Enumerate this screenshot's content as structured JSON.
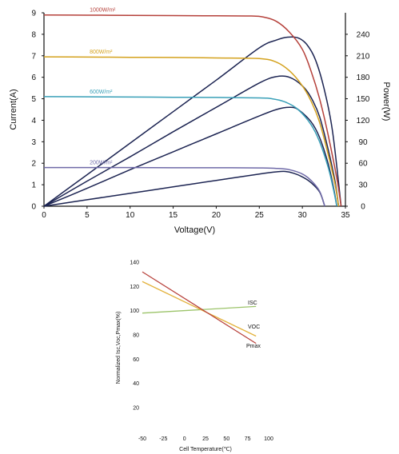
{
  "chart_data": [
    {
      "type": "line",
      "title": "",
      "xlabel": "Voltage(V)",
      "ylabel": "Current(A)",
      "ylabel_right": "Power(W)",
      "xlim": [
        0,
        35
      ],
      "ylim": [
        0,
        9
      ],
      "ylim_right": [
        0,
        270
      ],
      "xticks": [
        0,
        5,
        10,
        15,
        20,
        25,
        30,
        35
      ],
      "yticks": [
        0,
        1,
        2,
        3,
        4,
        5,
        6,
        7,
        8,
        9
      ],
      "yticks_right": [
        0,
        30,
        60,
        90,
        120,
        150,
        180,
        210,
        240
      ],
      "grid": false,
      "series": [
        {
          "name": "1000W/m²",
          "color": "#b5403a",
          "iv": [
            [
              0,
              8.9
            ],
            [
              5,
              8.89
            ],
            [
              10,
              8.88
            ],
            [
              15,
              8.87
            ],
            [
              20,
              8.86
            ],
            [
              24,
              8.85
            ],
            [
              25.5,
              8.8
            ],
            [
              27,
              8.6
            ],
            [
              28.5,
              8.1
            ],
            [
              30,
              7.3
            ],
            [
              31,
              6.3
            ],
            [
              32,
              5.0
            ],
            [
              33,
              3.3
            ],
            [
              34,
              1.3
            ],
            [
              34.5,
              0
            ]
          ],
          "pv": [
            [
              0,
              0
            ],
            [
              5,
              44
            ],
            [
              10,
              88
            ],
            [
              15,
              132
            ],
            [
              20,
              176
            ],
            [
              25,
              221
            ],
            [
              27,
              232
            ],
            [
              28.3,
              236
            ],
            [
              29.5,
              235
            ],
            [
              30.5,
              226
            ],
            [
              31.5,
              205
            ],
            [
              32.5,
              165
            ],
            [
              33.5,
              105
            ],
            [
              34.5,
              0
            ]
          ]
        },
        {
          "name": "800W/m²",
          "color": "#d4a21e",
          "iv": [
            [
              0,
              6.95
            ],
            [
              5,
              6.94
            ],
            [
              10,
              6.93
            ],
            [
              15,
              6.92
            ],
            [
              20,
              6.9
            ],
            [
              25,
              6.87
            ],
            [
              27,
              6.7
            ],
            [
              28.5,
              6.3
            ],
            [
              30,
              5.6
            ],
            [
              31,
              4.9
            ],
            [
              32,
              3.9
            ],
            [
              33,
              2.4
            ],
            [
              33.8,
              1.0
            ],
            [
              34.2,
              0
            ]
          ],
          "pv": [
            [
              0,
              0
            ],
            [
              5,
              35
            ],
            [
              10,
              69
            ],
            [
              15,
              104
            ],
            [
              20,
              138
            ],
            [
              25,
              172
            ],
            [
              27,
              181
            ],
            [
              28.5,
              180
            ],
            [
              30,
              168
            ],
            [
              31,
              152
            ],
            [
              32,
              125
            ],
            [
              33,
              79
            ],
            [
              33.8,
              34
            ],
            [
              34.2,
              0
            ]
          ]
        },
        {
          "name": "600W/m²",
          "color": "#3aa0b8",
          "iv": [
            [
              0,
              5.1
            ],
            [
              5,
              5.09
            ],
            [
              10,
              5.08
            ],
            [
              15,
              5.07
            ],
            [
              20,
              5.06
            ],
            [
              25,
              5.04
            ],
            [
              26.5,
              5.0
            ],
            [
              28,
              4.85
            ],
            [
              29.5,
              4.5
            ],
            [
              31,
              3.8
            ],
            [
              32,
              3.0
            ],
            [
              33,
              1.8
            ],
            [
              33.6,
              0.8
            ],
            [
              34,
              0
            ]
          ],
          "pv": [
            [
              0,
              0
            ],
            [
              5,
              25
            ],
            [
              10,
              51
            ],
            [
              15,
              76
            ],
            [
              20,
              101
            ],
            [
              25,
              126
            ],
            [
              27,
              135
            ],
            [
              28.5,
              138
            ],
            [
              29.5,
              135
            ],
            [
              31,
              118
            ],
            [
              32,
              96
            ],
            [
              33,
              59
            ],
            [
              33.6,
              27
            ],
            [
              34,
              0
            ]
          ]
        },
        {
          "name": "200W/m²",
          "color": "#6f6aa8",
          "iv": [
            [
              0,
              1.8
            ],
            [
              5,
              1.8
            ],
            [
              10,
              1.8
            ],
            [
              15,
              1.79
            ],
            [
              20,
              1.79
            ],
            [
              25,
              1.78
            ],
            [
              27,
              1.76
            ],
            [
              28.5,
              1.7
            ],
            [
              30,
              1.5
            ],
            [
              31,
              1.2
            ],
            [
              32,
              0.7
            ],
            [
              32.6,
              0
            ]
          ],
          "pv": [
            [
              0,
              0
            ],
            [
              5,
              9
            ],
            [
              10,
              18
            ],
            [
              15,
              27
            ],
            [
              20,
              36
            ],
            [
              25,
              45
            ],
            [
              27,
              48
            ],
            [
              28,
              48.5
            ],
            [
              29,
              46
            ],
            [
              30,
              41
            ],
            [
              31,
              33
            ],
            [
              32,
              20
            ],
            [
              32.6,
              0
            ]
          ]
        }
      ],
      "power_series_color": "#1c2452"
    },
    {
      "type": "line",
      "title": "",
      "xlabel": "Cell Temperature(℃)",
      "ylabel": "Normalized Isc,Voc,Pmax(%)",
      "xlim": [
        -50,
        100
      ],
      "ylim": [
        20,
        140
      ],
      "xticks": [
        -50,
        -25,
        0,
        25,
        50,
        75,
        100
      ],
      "yticks": [
        20,
        40,
        60,
        80,
        100,
        120,
        140
      ],
      "grid": false,
      "series": [
        {
          "name": "ISC",
          "color": "#9cc46a",
          "points": [
            [
              -50,
              98
            ],
            [
              85,
              103.5
            ]
          ]
        },
        {
          "name": "VOC",
          "color": "#e3b23c",
          "points": [
            [
              -50,
              124
            ],
            [
              85,
              79
            ]
          ]
        },
        {
          "name": "Pmax",
          "color": "#b8433d",
          "points": [
            [
              -50,
              132
            ],
            [
              85,
              73
            ]
          ]
        }
      ]
    }
  ]
}
